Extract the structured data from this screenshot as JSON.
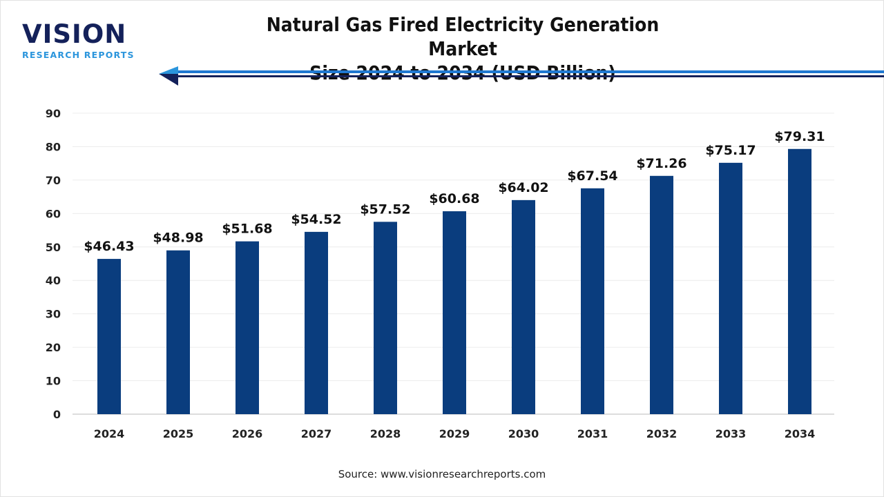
{
  "logo": {
    "word": "VISION",
    "sub": "RESEARCH REPORTS"
  },
  "source": "Source: www.visionresearchreports.com",
  "colors": {
    "bar": "#0a3d7e",
    "accent_line": "#1f78d1",
    "logo_dark": "#14215a",
    "logo_light": "#2b95dc"
  },
  "chart_data": {
    "type": "bar",
    "title": "Natural Gas Fired Electricity Generation Market Size 2024 to 2034 (USD Billion)",
    "title_lines": [
      "Natural Gas Fired Electricity Generation Market",
      "Size 2024 to 2034 (USD Billion)"
    ],
    "categories": [
      "2024",
      "2025",
      "2026",
      "2027",
      "2028",
      "2029",
      "2030",
      "2031",
      "2032",
      "2033",
      "2034"
    ],
    "values": [
      46.43,
      48.98,
      51.68,
      54.52,
      57.52,
      60.68,
      64.02,
      67.54,
      71.26,
      75.17,
      79.31
    ],
    "data_labels": [
      "$46.43",
      "$48.98",
      "$51.68",
      "$54.52",
      "$57.52",
      "$60.68",
      "$64.02",
      "$67.54",
      "$71.26",
      "$75.17",
      "$79.31"
    ],
    "ylim": [
      0,
      90
    ],
    "yticks": [
      0,
      10,
      20,
      30,
      40,
      50,
      60,
      70,
      80,
      90
    ],
    "grid": true,
    "xlabel": "",
    "ylabel": ""
  }
}
